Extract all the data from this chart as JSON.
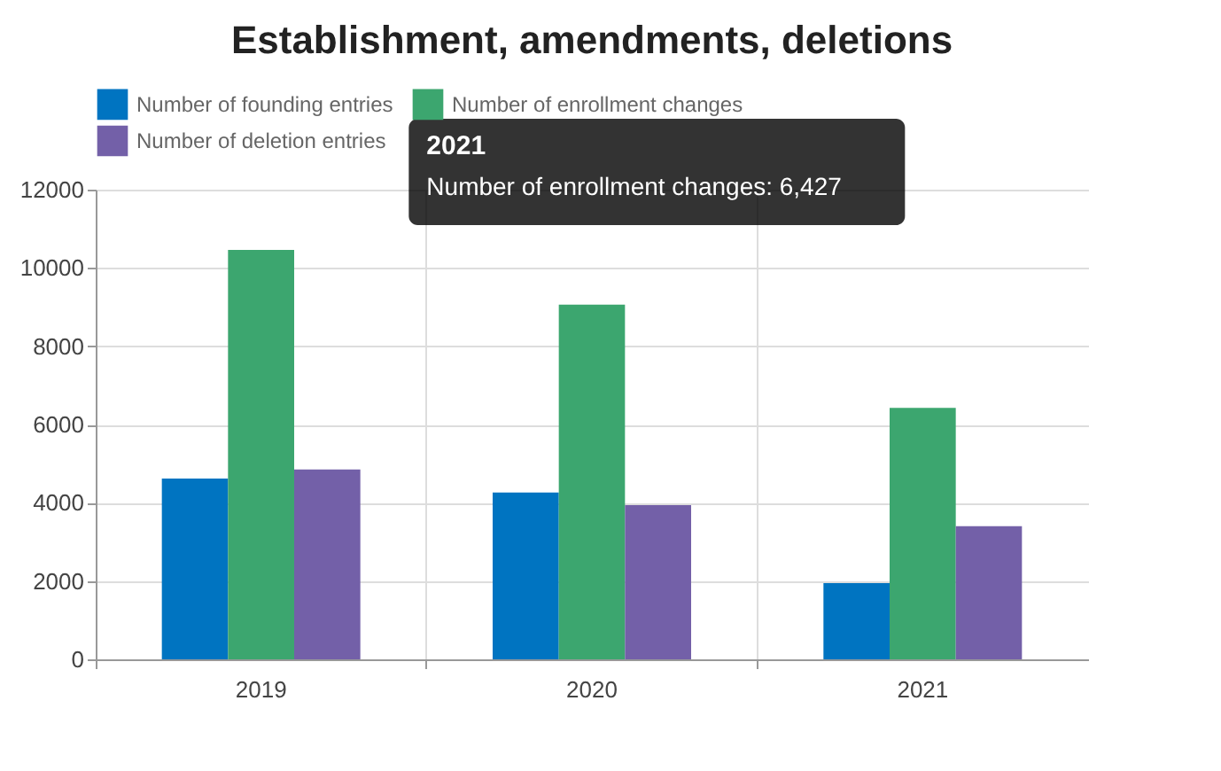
{
  "chart_data": {
    "type": "bar",
    "title": "Establishment, amendments, deletions",
    "categories": [
      "2019",
      "2020",
      "2021"
    ],
    "series": [
      {
        "name": "Number of founding entries",
        "color": "#0074c1",
        "values": [
          4620,
          4260,
          1950
        ]
      },
      {
        "name": "Number of enrollment changes",
        "color": "#3ca66f",
        "values": [
          10460,
          9060,
          6427
        ]
      },
      {
        "name": "Number of deletion entries",
        "color": "#7360a8",
        "values": [
          4850,
          3940,
          3400
        ]
      }
    ],
    "ylim": [
      0,
      12000
    ],
    "yticks": [
      0,
      2000,
      4000,
      6000,
      8000,
      10000,
      12000
    ],
    "grid": true,
    "legend": "top",
    "annotations": [
      "2021",
      "Number of enrollment changes: 6,427"
    ]
  }
}
